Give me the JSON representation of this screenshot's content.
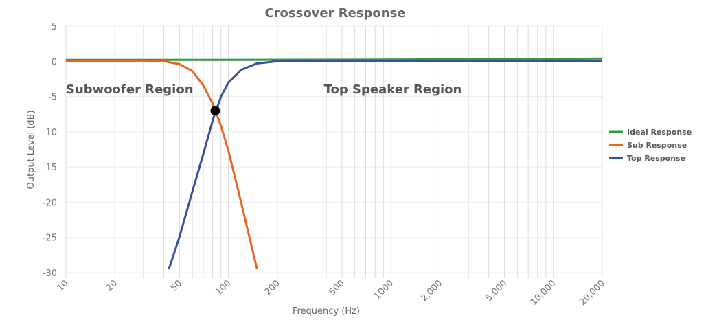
{
  "chart_data": {
    "type": "line",
    "title": "Crossover Response",
    "xlabel": "Frequency (Hz)",
    "ylabel": "Output Level (dB)",
    "xscale": "log",
    "xlim": [
      10,
      20000
    ],
    "ylim": [
      -30,
      5
    ],
    "xticks": [
      10,
      20,
      50,
      100,
      200,
      500,
      1000,
      {
        "value": 2000,
        "label": "2,000"
      },
      {
        "value": 5000,
        "label": "5,000"
      },
      {
        "value": 10000,
        "label": "10,000"
      },
      {
        "value": 20000,
        "label": "20,000"
      }
    ],
    "xminor": [
      30,
      40,
      60,
      70,
      80,
      90,
      300,
      400,
      600,
      700,
      800,
      900,
      3000,
      4000,
      6000,
      7000,
      8000,
      9000
    ],
    "yticks": [
      5,
      0,
      -5,
      -10,
      -15,
      -20,
      -25,
      -30
    ],
    "grid": true,
    "legend": "right",
    "series": [
      {
        "name": "Ideal Response",
        "color": "#2e9a3e",
        "x": [
          10,
          100,
          1000,
          10000,
          20000
        ],
        "values": [
          0.2,
          0.2,
          0.25,
          0.35,
          0.4
        ]
      },
      {
        "name": "Sub Response",
        "color": "#ea6522",
        "x": [
          10,
          20,
          30,
          40,
          50,
          60,
          70,
          80,
          90,
          100,
          120,
          150
        ],
        "values": [
          0,
          0,
          0.1,
          0,
          -0.4,
          -1.4,
          -3.4,
          -6,
          -9.2,
          -12.7,
          -20.1,
          -29.5
        ]
      },
      {
        "name": "Top Response",
        "color": "#3a4f9c",
        "x": [
          43,
          50,
          60,
          70,
          80,
          90,
          100,
          120,
          150,
          200,
          1000,
          20000
        ],
        "values": [
          -29.5,
          -24.9,
          -18.5,
          -13.2,
          -8.4,
          -5,
          -3,
          -1.2,
          -0.3,
          0,
          0,
          0
        ]
      }
    ],
    "crossover": {
      "x": 83,
      "y": -7
    },
    "annotations": [
      "Subwoofer Region",
      "Top Speaker Region"
    ]
  }
}
